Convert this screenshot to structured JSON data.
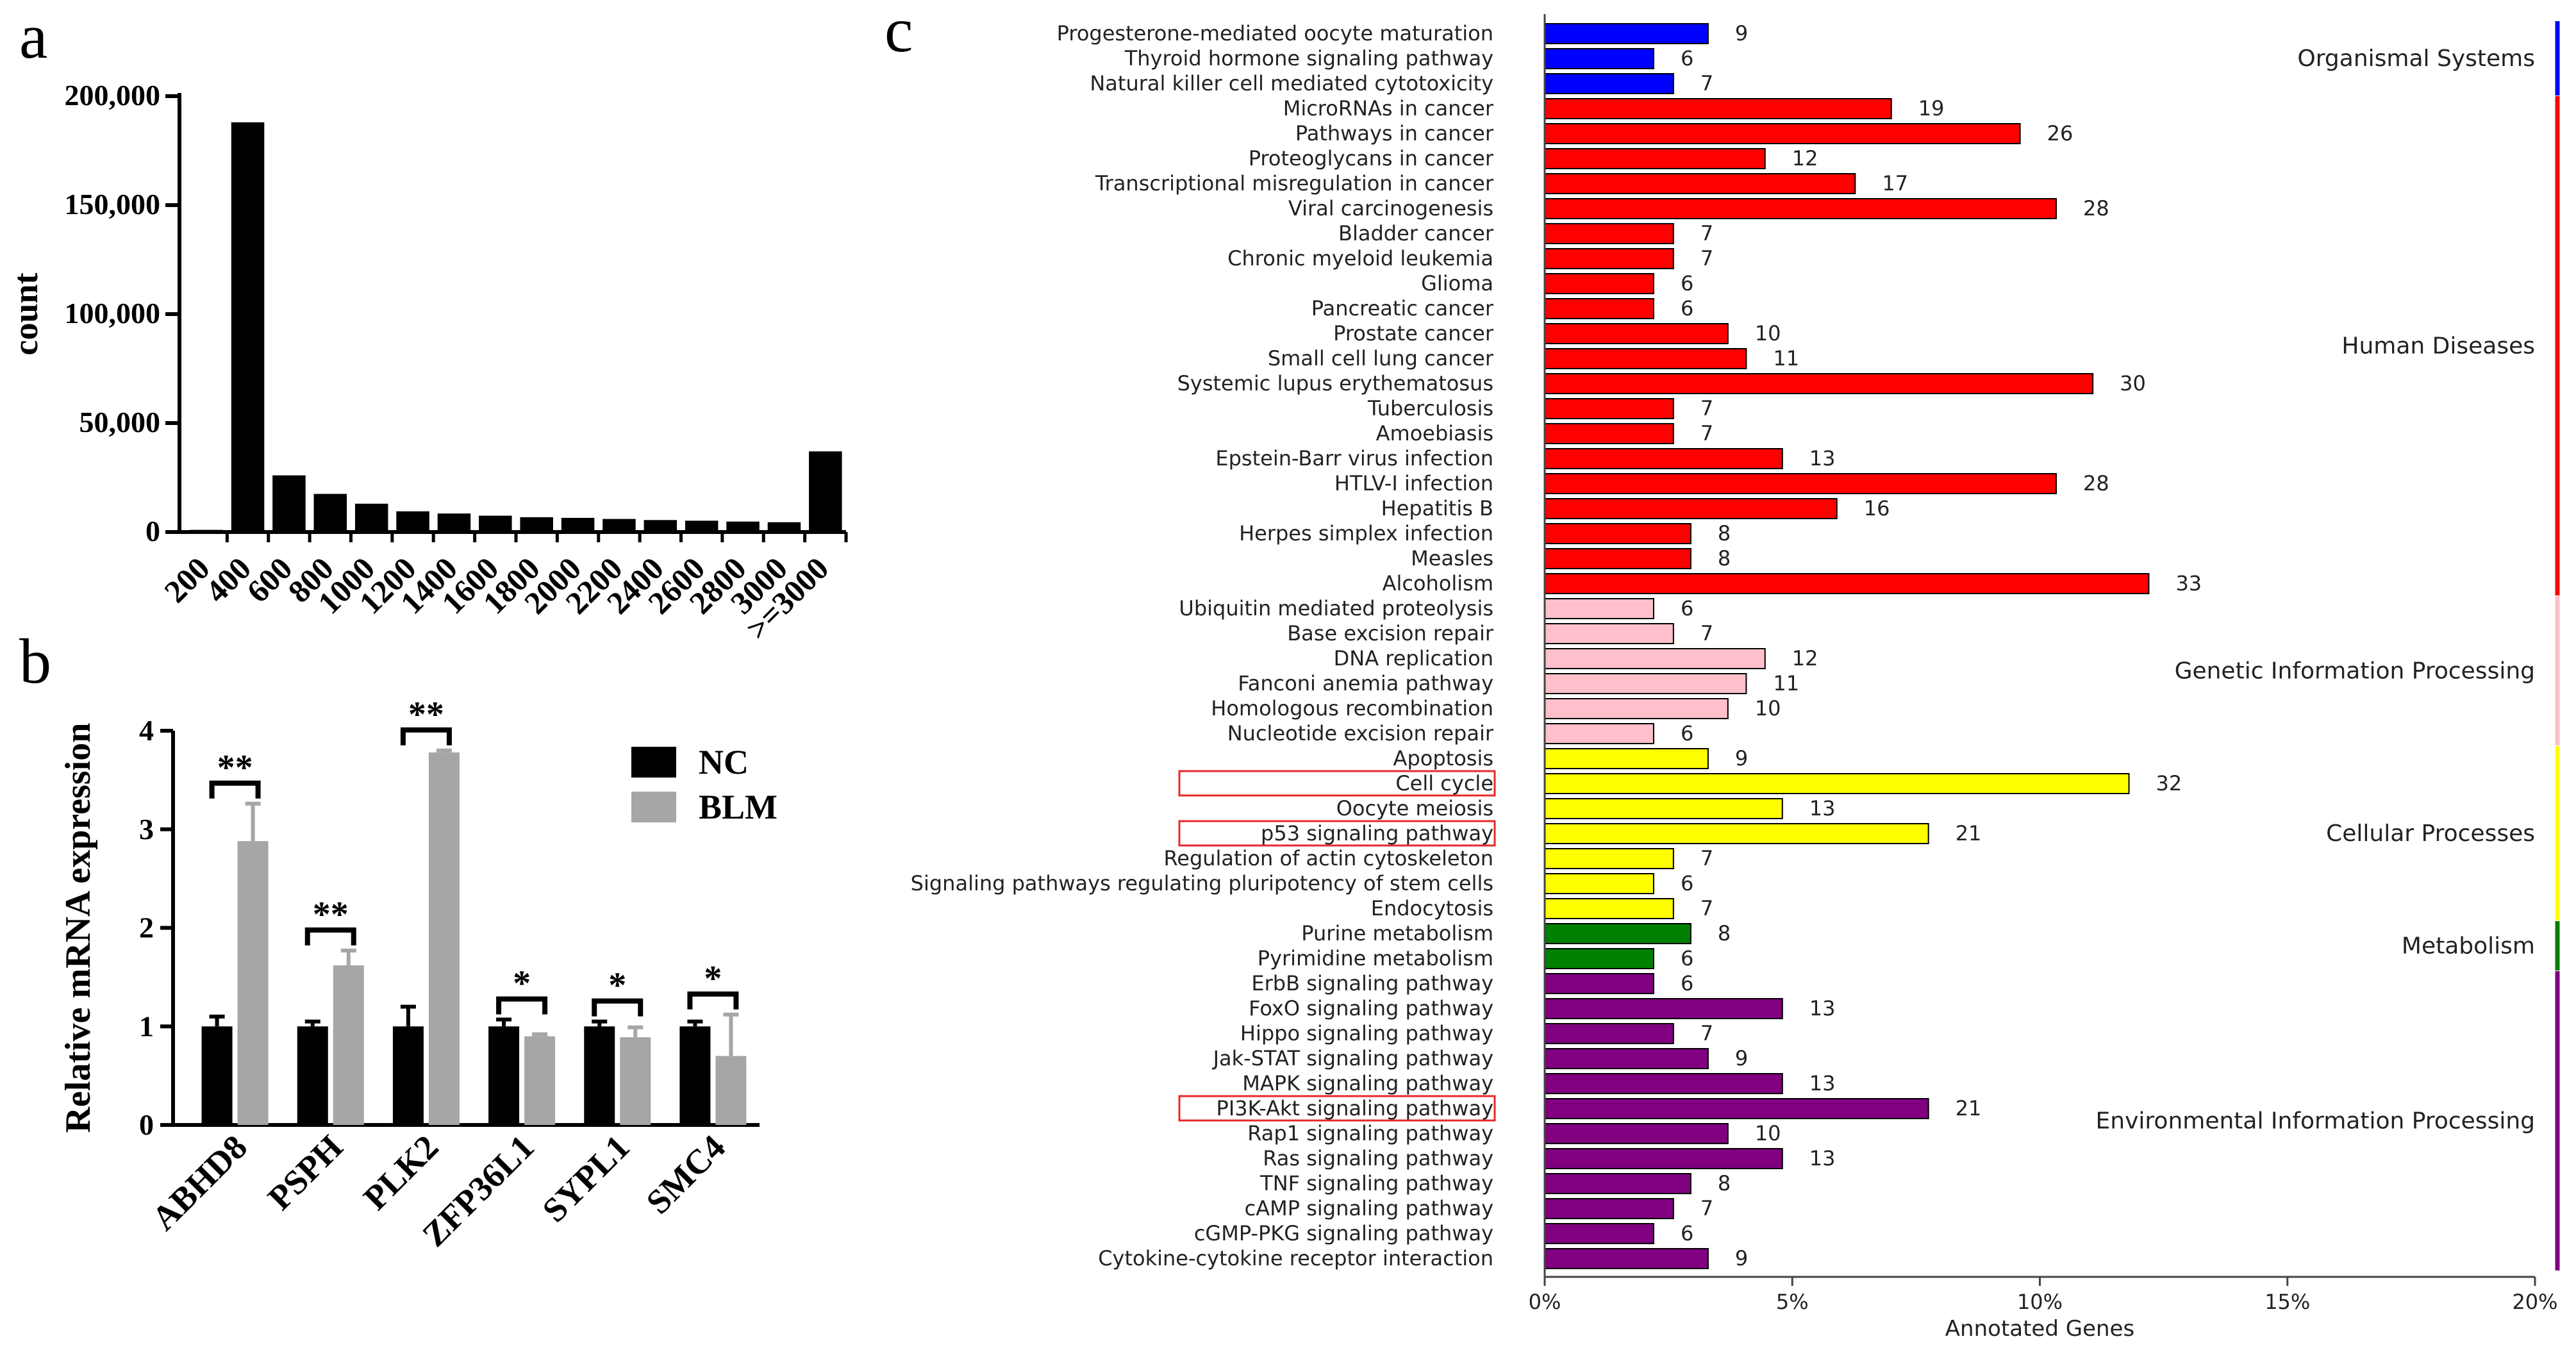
{
  "panel_labels": {
    "a": "a",
    "b": "b",
    "c": "c"
  },
  "chart_data": [
    {
      "panel": "a",
      "type": "bar",
      "title": "",
      "xlabel": "",
      "ylabel": "count",
      "ylim": [
        0,
        200000
      ],
      "yticks": [
        "0",
        "50,000",
        "100,000",
        "150,000",
        "200,000"
      ],
      "ytick_values": [
        0,
        50000,
        100000,
        150000,
        200000
      ],
      "categories": [
        "200",
        "400",
        "600",
        "800",
        "1000",
        "1200",
        "1400",
        "1600",
        "1800",
        "2000",
        "2200",
        "2400",
        "2600",
        "2800",
        "3000",
        ">=3000"
      ],
      "values": [
        1000,
        188000,
        26000,
        17500,
        13000,
        9500,
        8500,
        7500,
        6800,
        6500,
        6000,
        5500,
        5200,
        4800,
        4500,
        37000
      ]
    },
    {
      "panel": "b",
      "type": "bar",
      "ylabel": "Relative mRNA expression",
      "ylim": [
        0,
        4
      ],
      "yticks": [
        "0",
        "1",
        "2",
        "3",
        "4"
      ],
      "ytick_values": [
        0,
        1,
        2,
        3,
        4
      ],
      "categories": [
        "ABHD8",
        "PSPH",
        "PLK2",
        "ZFP36L1",
        "SYPL1",
        "SMC4"
      ],
      "series": [
        {
          "name": "NC",
          "color": "#000000",
          "values": [
            1.0,
            1.0,
            1.0,
            1.0,
            1.0,
            1.0
          ],
          "errors": [
            0.1,
            0.05,
            0.2,
            0.07,
            0.05,
            0.05
          ]
        },
        {
          "name": "BLM",
          "color": "#a6a6a6",
          "values": [
            2.88,
            1.62,
            3.78,
            0.9,
            0.89,
            0.7
          ],
          "errors": [
            0.38,
            0.15,
            0.02,
            0.02,
            0.1,
            0.42
          ]
        }
      ],
      "significance": [
        "**",
        "**",
        "**",
        "*",
        "*",
        "*"
      ],
      "legend_position": "top-right"
    },
    {
      "panel": "c",
      "type": "bar",
      "orientation": "horizontal",
      "xlabel": "Annotated Genes",
      "xlim": [
        0,
        20
      ],
      "xticks": [
        "0%",
        "5%",
        "10%",
        "15%",
        "20%"
      ],
      "xtick_values": [
        0,
        5,
        10,
        15,
        20
      ],
      "groups": [
        {
          "name": "Organismal Systems",
          "color": "#0000ff",
          "line_color": "#0000ff"
        },
        {
          "name": "Human Diseases",
          "color": "#ff0000",
          "line_color": "#ff0000"
        },
        {
          "name": "Genetic Information Processing",
          "color": "#ffc0cb",
          "line_color": "#ffc0cb"
        },
        {
          "name": "Cellular Processes",
          "color": "#ffff00",
          "line_color": "#ffff00"
        },
        {
          "name": "Metabolism",
          "color": "#008000",
          "line_color": "#008000"
        },
        {
          "name": "Environmental Information Processing",
          "color": "#800080",
          "line_color": "#800080"
        }
      ],
      "rows": [
        {
          "label": "Progesterone-mediated oocyte maturation",
          "count": 9,
          "percent": 3.3,
          "group": 0
        },
        {
          "label": "Thyroid hormone signaling pathway",
          "count": 6,
          "percent": 2.2,
          "group": 0
        },
        {
          "label": "Natural killer cell mediated cytotoxicity",
          "count": 7,
          "percent": 2.6,
          "group": 0
        },
        {
          "label": "MicroRNAs in cancer",
          "count": 19,
          "percent": 7.0,
          "group": 1
        },
        {
          "label": "Pathways in cancer",
          "count": 26,
          "percent": 9.6,
          "group": 1
        },
        {
          "label": "Proteoglycans in cancer",
          "count": 12,
          "percent": 4.45,
          "group": 1
        },
        {
          "label": "Transcriptional misregulation in cancer",
          "count": 17,
          "percent": 6.27,
          "group": 1
        },
        {
          "label": "Viral carcinogenesis",
          "count": 28,
          "percent": 10.33,
          "group": 1
        },
        {
          "label": "Bladder cancer",
          "count": 7,
          "percent": 2.6,
          "group": 1
        },
        {
          "label": "Chronic myeloid leukemia",
          "count": 7,
          "percent": 2.6,
          "group": 1
        },
        {
          "label": "Glioma",
          "count": 6,
          "percent": 2.2,
          "group": 1
        },
        {
          "label": "Pancreatic cancer",
          "count": 6,
          "percent": 2.2,
          "group": 1
        },
        {
          "label": "Prostate cancer",
          "count": 10,
          "percent": 3.7,
          "group": 1
        },
        {
          "label": "Small cell lung cancer",
          "count": 11,
          "percent": 4.07,
          "group": 1
        },
        {
          "label": "Systemic lupus erythematosus",
          "count": 30,
          "percent": 11.07,
          "group": 1
        },
        {
          "label": "Tuberculosis",
          "count": 7,
          "percent": 2.6,
          "group": 1
        },
        {
          "label": "Amoebiasis",
          "count": 7,
          "percent": 2.6,
          "group": 1
        },
        {
          "label": "Epstein-Barr virus infection",
          "count": 13,
          "percent": 4.8,
          "group": 1
        },
        {
          "label": "HTLV-I infection",
          "count": 28,
          "percent": 10.33,
          "group": 1
        },
        {
          "label": "Hepatitis B",
          "count": 16,
          "percent": 5.9,
          "group": 1
        },
        {
          "label": "Herpes simplex infection",
          "count": 8,
          "percent": 2.95,
          "group": 1
        },
        {
          "label": "Measles",
          "count": 8,
          "percent": 2.95,
          "group": 1
        },
        {
          "label": "Alcoholism",
          "count": 33,
          "percent": 12.2,
          "group": 1
        },
        {
          "label": "Ubiquitin mediated proteolysis",
          "count": 6,
          "percent": 2.2,
          "group": 2
        },
        {
          "label": "Base excision repair",
          "count": 7,
          "percent": 2.6,
          "group": 2
        },
        {
          "label": "DNA replication",
          "count": 12,
          "percent": 4.45,
          "group": 2
        },
        {
          "label": "Fanconi anemia pathway",
          "count": 11,
          "percent": 4.07,
          "group": 2
        },
        {
          "label": "Homologous recombination",
          "count": 10,
          "percent": 3.7,
          "group": 2
        },
        {
          "label": "Nucleotide excision repair",
          "count": 6,
          "percent": 2.2,
          "group": 2
        },
        {
          "label": "Apoptosis",
          "count": 9,
          "percent": 3.3,
          "group": 3
        },
        {
          "label": "Cell cycle",
          "count": 32,
          "percent": 11.8,
          "group": 3,
          "highlight": true
        },
        {
          "label": "Oocyte meiosis",
          "count": 13,
          "percent": 4.8,
          "group": 3
        },
        {
          "label": "p53 signaling pathway",
          "count": 21,
          "percent": 7.75,
          "group": 3,
          "highlight": true
        },
        {
          "label": "Regulation of actin cytoskeleton",
          "count": 7,
          "percent": 2.6,
          "group": 3
        },
        {
          "label": "Signaling pathways regulating pluripotency of stem cells",
          "count": 6,
          "percent": 2.2,
          "group": 3
        },
        {
          "label": "Endocytosis",
          "count": 7,
          "percent": 2.6,
          "group": 3
        },
        {
          "label": "Purine metabolism",
          "count": 8,
          "percent": 2.95,
          "group": 4
        },
        {
          "label": "Pyrimidine metabolism",
          "count": 6,
          "percent": 2.2,
          "group": 4
        },
        {
          "label": "ErbB signaling pathway",
          "count": 6,
          "percent": 2.2,
          "group": 5
        },
        {
          "label": "FoxO signaling pathway",
          "count": 13,
          "percent": 4.8,
          "group": 5
        },
        {
          "label": "Hippo signaling pathway",
          "count": 7,
          "percent": 2.6,
          "group": 5
        },
        {
          "label": "Jak-STAT signaling pathway",
          "count": 9,
          "percent": 3.3,
          "group": 5
        },
        {
          "label": "MAPK signaling pathway",
          "count": 13,
          "percent": 4.8,
          "group": 5
        },
        {
          "label": "PI3K-Akt signaling pathway",
          "count": 21,
          "percent": 7.75,
          "group": 5,
          "highlight": true
        },
        {
          "label": "Rap1 signaling pathway",
          "count": 10,
          "percent": 3.7,
          "group": 5
        },
        {
          "label": "Ras signaling pathway",
          "count": 13,
          "percent": 4.8,
          "group": 5
        },
        {
          "label": "TNF signaling pathway",
          "count": 8,
          "percent": 2.95,
          "group": 5
        },
        {
          "label": "cAMP signaling pathway",
          "count": 7,
          "percent": 2.6,
          "group": 5
        },
        {
          "label": "cGMP-PKG signaling pathway",
          "count": 6,
          "percent": 2.2,
          "group": 5
        },
        {
          "label": "Cytokine-cytokine receptor interaction",
          "count": 9,
          "percent": 3.3,
          "group": 5
        }
      ]
    }
  ]
}
